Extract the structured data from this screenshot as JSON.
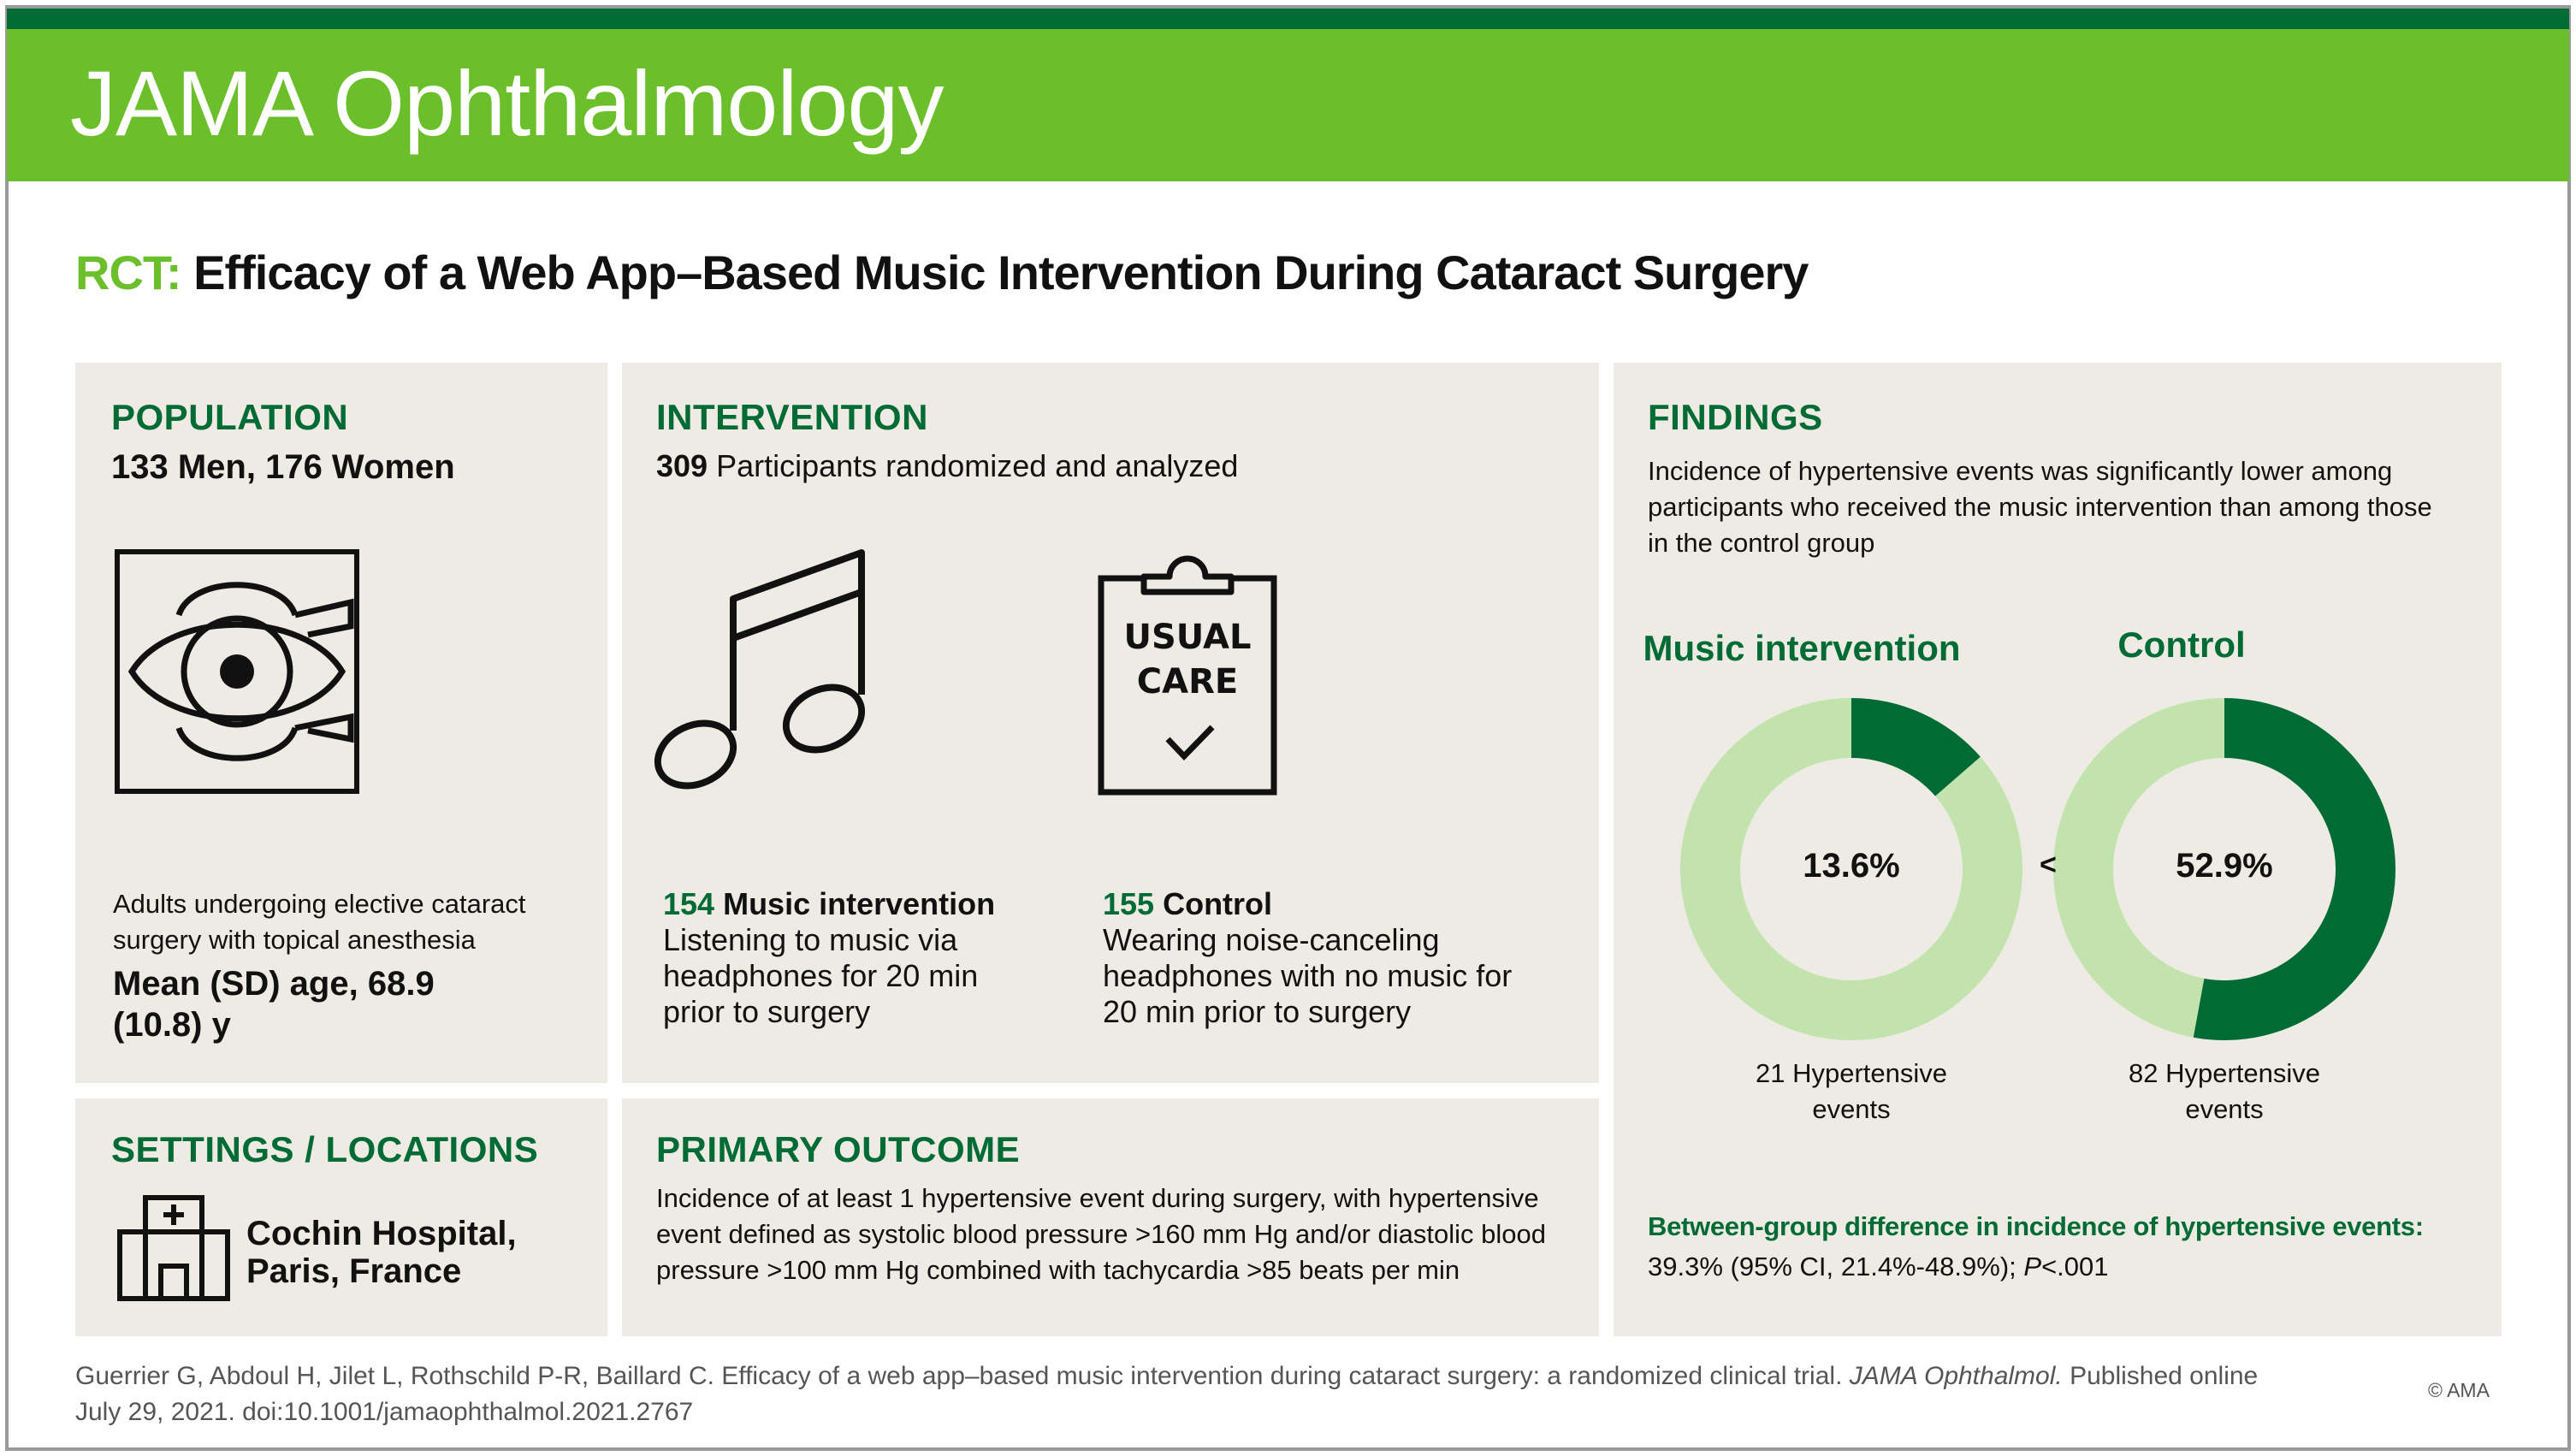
{
  "journal": "JAMA Ophthalmology",
  "title": {
    "tag": "RCT:",
    "text": " Efficacy of a Web App–Based Music Intervention During Cataract Surgery"
  },
  "population": {
    "heading": "POPULATION",
    "counts": "133 Men, 176 Women",
    "description_1": "Adults undergoing elective cataract",
    "description_2": "surgery with topical anesthesia",
    "age_1": "Mean (SD) age, 68.9",
    "age_2": "(10.8) y",
    "icon": "eye-surgery-icon"
  },
  "intervention": {
    "heading": "INTERVENTION",
    "count": "309",
    "count_label": " Participants randomized and analyzed",
    "music": {
      "n": "154",
      "label": " Music intervention",
      "line1": "Listening to music via",
      "line2": "headphones for 20 min",
      "line3": "prior to surgery",
      "icon": "music-note-icon"
    },
    "control": {
      "n": "155",
      "label": " Control",
      "line1": "Wearing noise-canceling",
      "line2": "headphones with no music for",
      "line3": "20 min prior to surgery",
      "icon": "clipboard-icon",
      "clip_line1": "USUAL",
      "clip_line2": "CARE"
    }
  },
  "settings": {
    "heading": "SETTINGS / LOCATIONS",
    "line1": "Cochin Hospital,",
    "line2": "Paris, France",
    "icon": "hospital-icon"
  },
  "outcome": {
    "heading": "PRIMARY OUTCOME",
    "line1": "Incidence of at least 1 hypertensive event during surgery, with hypertensive",
    "line2": "event defined as systolic blood pressure >160 mm Hg and/or diastolic blood",
    "line3": "pressure >100 mm Hg combined with tachycardia >85 beats per min"
  },
  "findings": {
    "heading": "FINDINGS",
    "line1": "Incidence of hypertensive events was significantly lower among",
    "line2": "participants who received the music intervention than among those",
    "line3": "in the control group",
    "comparator": "<",
    "diff_heading": "Between-group difference in incidence of hypertensive events:",
    "diff_text": "39.3% (95% CI, 21.4%-48.9%); ",
    "p_label": "P",
    "p_value": "<.001"
  },
  "chart_data": {
    "type": "pie",
    "series": [
      {
        "name": "Music intervention",
        "value_pct": 13.6,
        "label": "13.6%",
        "events_line1": "21 Hypertensive",
        "events_line2": "events"
      },
      {
        "name": "Control",
        "value_pct": 52.9,
        "label": "52.9%",
        "events_line1": "82 Hypertensive",
        "events_line2": "events"
      }
    ],
    "colors": {
      "filled": "#006b34",
      "remaining": "#c2e3ae"
    }
  },
  "citation": {
    "part1": "Guerrier G, Abdoul H, Jilet L, Rothschild P-R, Baillard C. Efficacy of a web app–based music intervention during cataract surgery: a randomized clinical trial. ",
    "journal_abbr": "JAMA Ophthalmol.",
    "part2": " Published online July 29, 2021. doi:10.1001/jamaophthalmol.2021.2767"
  },
  "copyright": "© AMA",
  "colors": {
    "brand_green": "#6abf2a",
    "dark_green": "#006b34",
    "panel_bg": "#edebe4"
  }
}
